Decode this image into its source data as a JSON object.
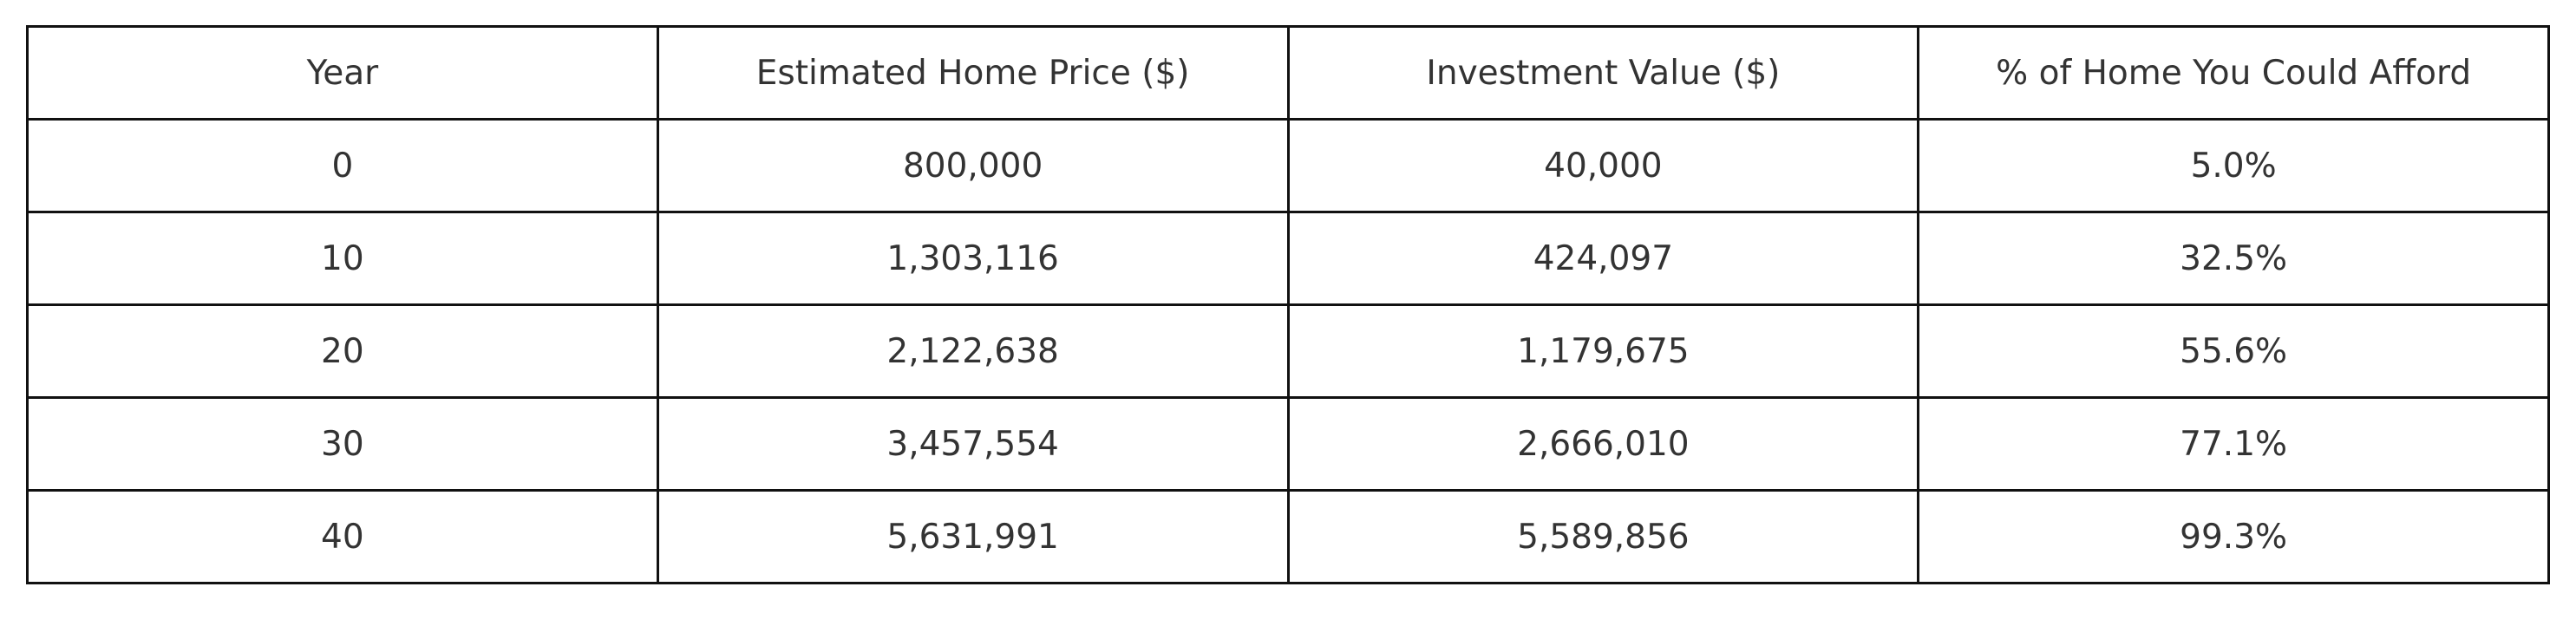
{
  "table": {
    "header": [
      "Year",
      "Estimated Home Price ($)",
      "Investment Value ($)",
      "% of Home You Could Afford"
    ],
    "rows": [
      [
        "0",
        "800,000",
        "40,000",
        "5.0%"
      ],
      [
        "10",
        "1,303,116",
        "424,097",
        "32.5%"
      ],
      [
        "20",
        "2,122,638",
        "1,179,675",
        "55.6%"
      ],
      [
        "30",
        "3,457,554",
        "2,666,010",
        "77.1%"
      ],
      [
        "40",
        "5,631,991",
        "5,589,856",
        "99.3%"
      ]
    ]
  }
}
